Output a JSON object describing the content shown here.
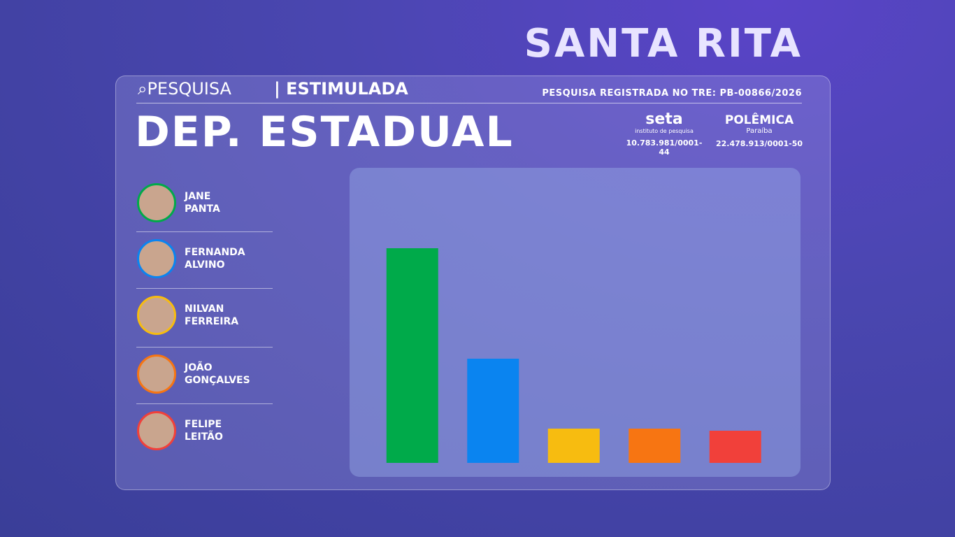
{
  "header": {
    "location": "SANTA RITA",
    "survey_label": "PESQUISA",
    "survey_type": "ESTIMULADA",
    "registration": "PESQUISA REGISTRADA NO TRE: PB-00866/2026",
    "office": "DEP. ESTADUAL"
  },
  "logos": [
    {
      "name": "seta",
      "subtitle": "instituto de pesquisa",
      "cnpj": "10.783.981/0001-44"
    },
    {
      "name": "POLÊMICA",
      "subtitle": "Paraíba",
      "cnpj": "22.478.913/0001-50"
    }
  ],
  "chart_data": {
    "type": "bar",
    "categories": [
      "JANE PANTA",
      "FERNANDA ALVINO",
      "NILVAN FERREIRA",
      "JOÃO GONÇALVES",
      "FELIPE LEITÃO"
    ],
    "values": [
      30.7,
      14.9,
      4.9,
      4.9,
      4.6
    ],
    "colors": [
      "#00aa4a",
      "#0a84f0",
      "#f7bc10",
      "#f77512",
      "#f1403a"
    ],
    "ylim": [
      0,
      42.2
    ]
  }
}
